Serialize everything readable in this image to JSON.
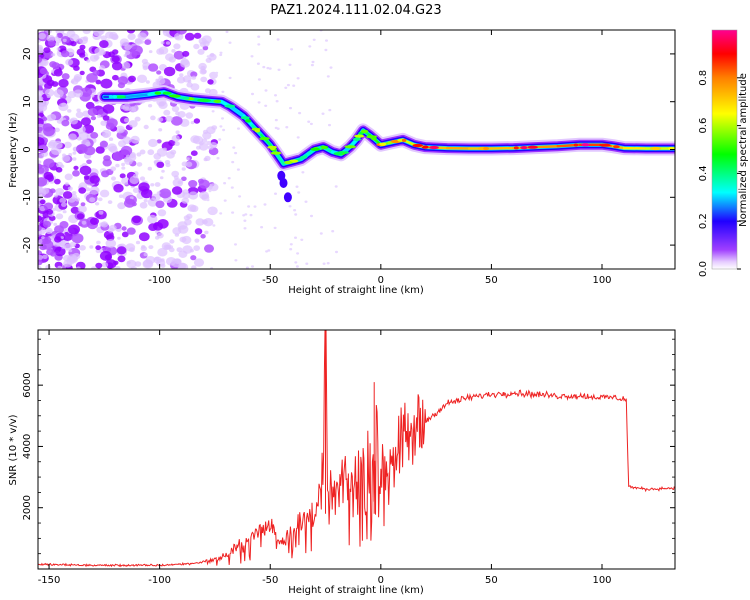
{
  "title": "PAZ1.2024.111.02.04.G23",
  "chart_data": [
    {
      "type": "heatmap",
      "xlabel": "Height of straight line (km)",
      "ylabel": "Frequency (Hz)",
      "xlim": [
        -155,
        133
      ],
      "ylim": [
        -25,
        25
      ],
      "xticks": [
        -150,
        -100,
        -50,
        0,
        50,
        100
      ],
      "yticks": [
        -20,
        -10,
        0,
        10,
        20
      ],
      "colorbar": {
        "label": "Normalized spectral amplitude",
        "range": [
          0,
          1
        ],
        "ticks": [
          0.0,
          0.2,
          0.4,
          0.6,
          0.8
        ],
        "colors": [
          "#ffffff",
          "#c080ff",
          "#8000ff",
          "#0000ff",
          "#00ffff",
          "#00ff00",
          "#ffff00",
          "#ff8000",
          "#ff0000",
          "#ff00a0"
        ]
      },
      "ridge": {
        "x": [
          -125,
          -115,
          -105,
          -98,
          -92,
          -85,
          -78,
          -72,
          -68,
          -62,
          -58,
          -54,
          -50,
          -47,
          -44,
          -40,
          -36,
          -33,
          -30,
          -26,
          -22,
          -18,
          -14,
          -11,
          -8,
          -5,
          0,
          5,
          10,
          15,
          20,
          30,
          40,
          50,
          60,
          70,
          80,
          90,
          100,
          105,
          110,
          120,
          133
        ],
        "y": [
          11,
          11,
          11.5,
          12,
          11,
          10.5,
          10.2,
          10,
          9,
          7,
          5,
          3,
          1,
          -1,
          -3,
          -2.5,
          -2,
          -1,
          0,
          0.5,
          -0.5,
          -1,
          0.5,
          2,
          4,
          3,
          1,
          1.5,
          2,
          1,
          0.5,
          0.3,
          0.2,
          0.2,
          0.3,
          0.5,
          0.7,
          1,
          1,
          0.7,
          0.3,
          0.2,
          0.2
        ],
        "amplitude": [
          0.2,
          0.25,
          0.3,
          0.35,
          0.35,
          0.4,
          0.4,
          0.35,
          0.3,
          0.3,
          0.35,
          0.4,
          0.45,
          0.4,
          0.35,
          0.4,
          0.4,
          0.35,
          0.35,
          0.4,
          0.35,
          0.3,
          0.3,
          0.35,
          0.4,
          0.45,
          0.55,
          0.6,
          0.6,
          0.65,
          0.7,
          0.75,
          0.75,
          0.7,
          0.75,
          0.75,
          0.8,
          0.85,
          0.85,
          0.75,
          0.7,
          0.65,
          0.6
        ]
      }
    },
    {
      "type": "line",
      "xlabel": "Height of straight line (km)",
      "ylabel": "SNR (10 * v/v)",
      "xlim": [
        -155,
        133
      ],
      "ylim": [
        0,
        7800
      ],
      "xticks": [
        -150,
        -100,
        -50,
        0,
        50,
        100
      ],
      "yticks": [
        2000,
        4000,
        6000
      ],
      "color": "#ee2222",
      "x": [
        -155,
        -130,
        -100,
        -85,
        -75,
        -70,
        -65,
        -60,
        -55,
        -50,
        -45,
        -42,
        -38,
        -34,
        -30,
        -28,
        -26,
        -25,
        -24,
        -23,
        -22,
        -20,
        -17,
        -14,
        -11,
        -8,
        -5,
        -3,
        -2,
        -1,
        0,
        2,
        5,
        10,
        15,
        20,
        25,
        30,
        40,
        50,
        60,
        70,
        80,
        90,
        100,
        105,
        110,
        111,
        112,
        115,
        120,
        133
      ],
      "y": [
        150,
        120,
        120,
        180,
        300,
        450,
        700,
        900,
        1200,
        1500,
        900,
        1200,
        1400,
        1700,
        1900,
        2200,
        3000,
        7800,
        1800,
        2400,
        2300,
        2600,
        2800,
        2700,
        3100,
        3400,
        3700,
        4100,
        6100,
        1500,
        3200,
        3500,
        3800,
        4100,
        4400,
        4800,
        5100,
        5400,
        5600,
        5700,
        5750,
        5700,
        5650,
        5650,
        5600,
        5600,
        5550,
        5500,
        2700,
        2650,
        2600,
        2650
      ]
    }
  ]
}
